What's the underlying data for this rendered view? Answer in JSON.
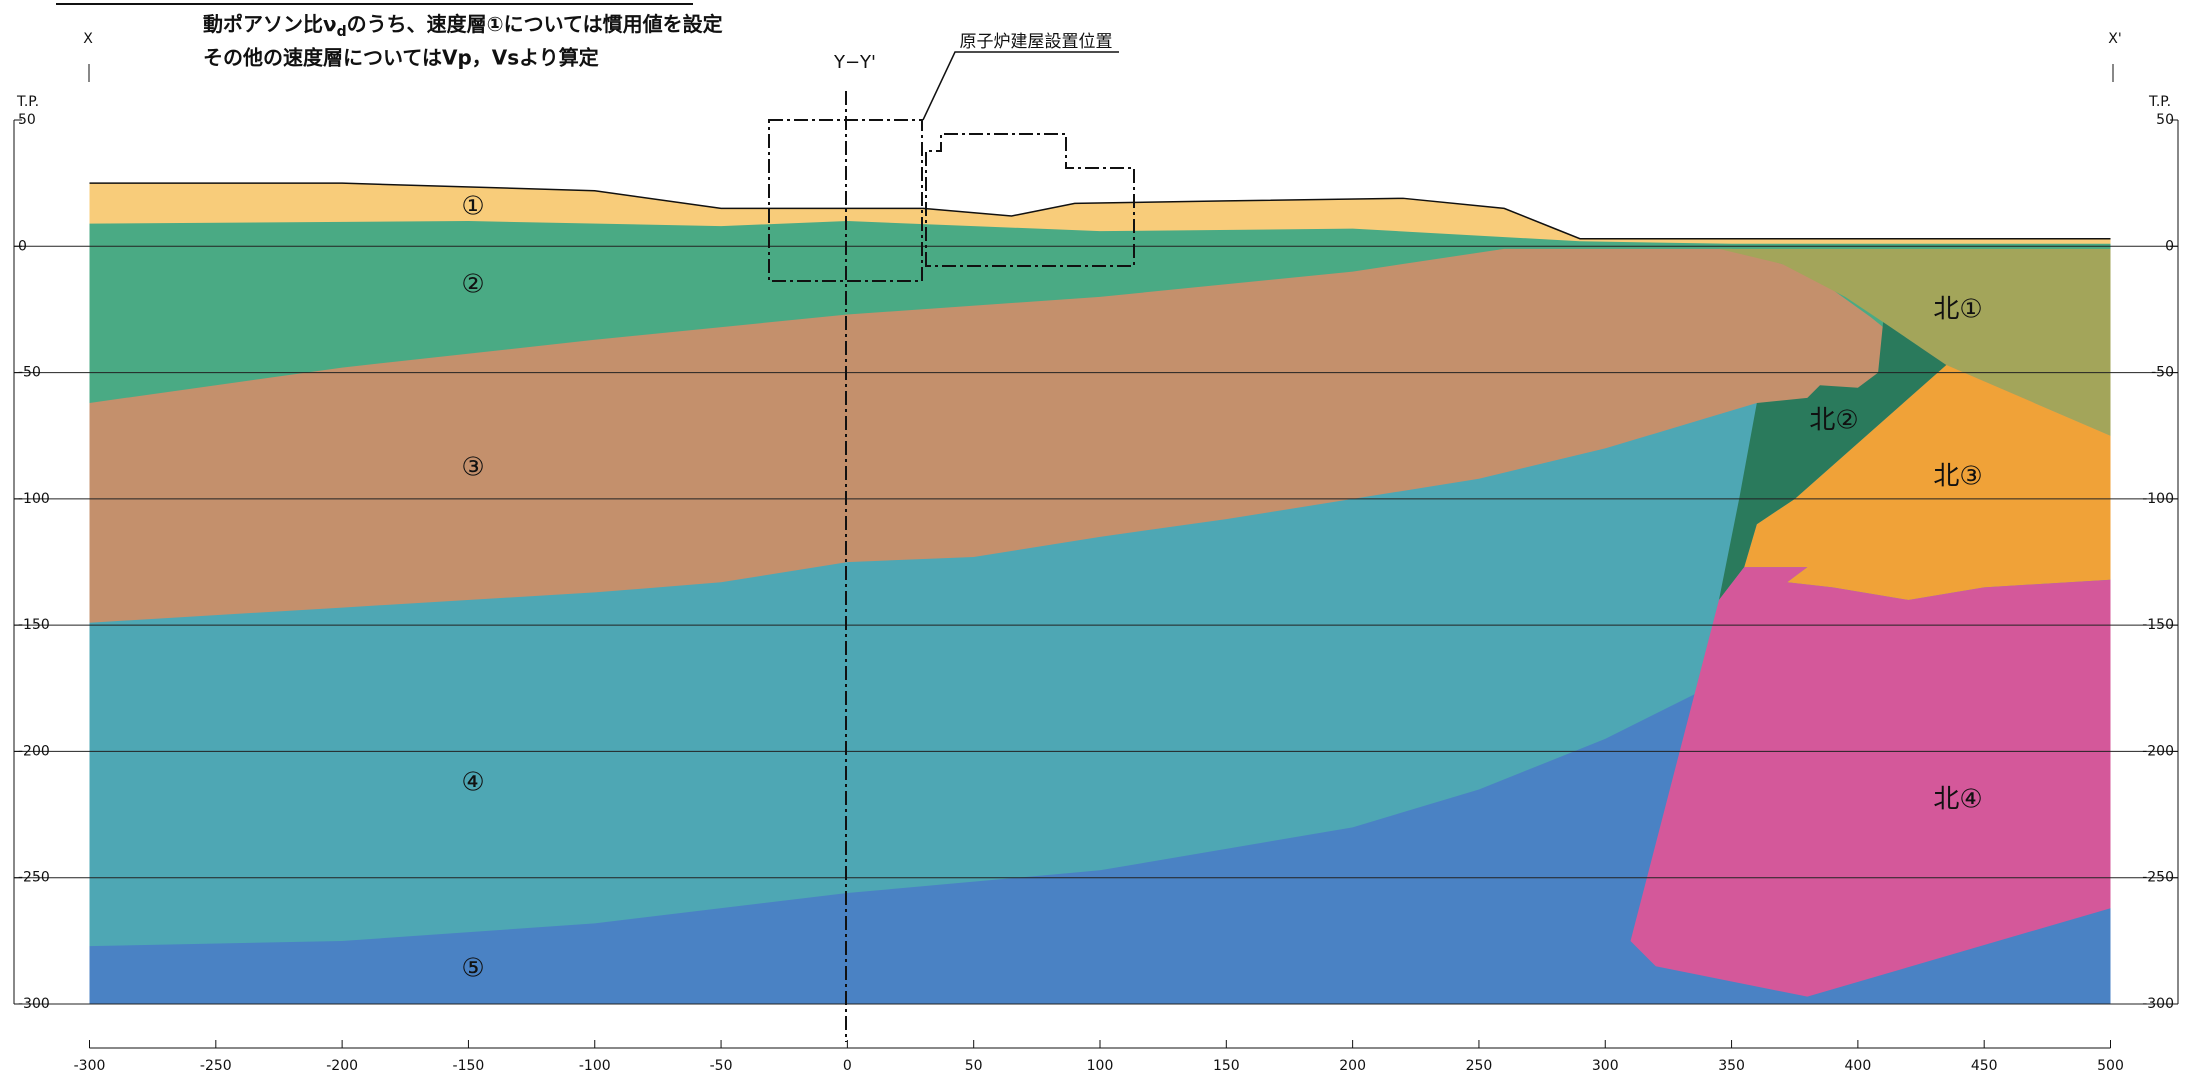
{
  "header": {
    "line1": [
      "動ポアソン比ν",
      "d",
      "のうち、速度層①については慣用値を設定"
    ],
    "line2": "その他の速度層についてはVp，Vsより算定"
  },
  "markers": {
    "left": "X",
    "right": "X'",
    "section": "Y−Y'",
    "building": "原子炉建屋設置位置"
  },
  "layers": [
    "①",
    "②",
    "③",
    "④",
    "⑤",
    "北①",
    "北②",
    "北③",
    "北④"
  ],
  "axes": {
    "y_label": "T.P.",
    "xlim": [
      -300,
      500
    ],
    "xticks": [
      -300,
      -250,
      -200,
      -150,
      -100,
      -50,
      0,
      50,
      100,
      150,
      200,
      250,
      300,
      350,
      400,
      450,
      500
    ],
    "ylim": [
      -300,
      50
    ],
    "yticks": [
      50,
      0,
      -50,
      -100,
      -150,
      -200,
      -250,
      -300
    ]
  }
}
